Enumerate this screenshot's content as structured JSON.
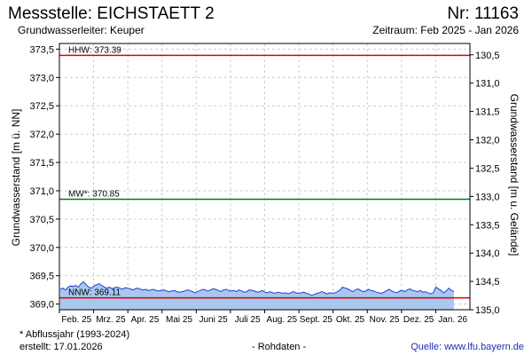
{
  "header": {
    "station_title": "Messstelle: EICHSTAETT 2",
    "station_number": "Nr: 11163",
    "aquifer": "Grundwasserleiter: Keuper",
    "period": "Zeitraum: Feb 2025 - Jan 2026"
  },
  "footer": {
    "footnote": "* Abflussjahr (1993-2024)",
    "created": "erstellt:  17.01.2026",
    "data_state": "- Rohdaten -",
    "source_label": "Quelle:",
    "source_url": "www.lfu.bayern.de"
  },
  "colors": {
    "hhw": "#e00000",
    "mw": "#008000",
    "nnw": "#e00000",
    "area_fill": "#a8c8f0",
    "level_line": "#2040d0",
    "grid": "#cccccc"
  },
  "chart_data": {
    "type": "area",
    "ylabel_left": "Grundwasserstand [m ü. NN]",
    "ylabel_right": "Grundwasserstand [m u. Gelände]",
    "ylim_left": [
      368.9,
      373.6
    ],
    "ylim_right": [
      135.0,
      130.5
    ],
    "grid": true,
    "left_ticks": [
      "373,5",
      "373,0",
      "372,5",
      "372,0",
      "371,5",
      "371,0",
      "370,5",
      "370,0",
      "369,5",
      "369,0"
    ],
    "left_tick_values": [
      373.5,
      373.0,
      372.5,
      372.0,
      371.5,
      371.0,
      370.5,
      370.0,
      369.5,
      369.0
    ],
    "right_ticks": [
      "130,5",
      "131,0",
      "131,5",
      "132,0",
      "132,5",
      "133,0",
      "133,5",
      "134,0",
      "134,5",
      "135,0"
    ],
    "right_tick_values": [
      130.5,
      131.0,
      131.5,
      132.0,
      132.5,
      133.0,
      133.5,
      134.0,
      134.5,
      135.0
    ],
    "ground_level_offset": 503.9,
    "x_ticks": [
      "Feb. 25",
      "Mrz. 25",
      "Apr. 25",
      "Mai 25",
      "Juni 25",
      "Juli 25",
      "Aug. 25",
      "Sept. 25",
      "Okt. 25",
      "Nov. 25",
      "Dez. 25",
      "Jan. 26"
    ],
    "reference_lines": [
      {
        "label": "HHW: 373.39",
        "value": 373.39,
        "color_key": "hhw"
      },
      {
        "label": "MW*: 370.85",
        "value": 370.85,
        "color_key": "mw"
      },
      {
        "label": "NNW: 369.11",
        "value": 369.11,
        "color_key": "nnw"
      }
    ],
    "series": [
      {
        "values": [
          369.26,
          369.28,
          369.25,
          369.3,
          369.32,
          369.31,
          369.33,
          369.3,
          369.36,
          369.39,
          369.34,
          369.3,
          369.28,
          369.32,
          369.34,
          369.36,
          369.33,
          369.3,
          369.28,
          369.3,
          369.27,
          369.29,
          369.3,
          369.28,
          369.26,
          369.29,
          369.28,
          369.27,
          369.25,
          369.27,
          369.28,
          369.26,
          369.25,
          369.26,
          369.24,
          369.25,
          369.26,
          369.24,
          369.23,
          369.24,
          369.25,
          369.23,
          369.22,
          369.23,
          369.24,
          369.22,
          369.21,
          369.22,
          369.23,
          369.25,
          369.24,
          369.22,
          369.2,
          369.22,
          369.24,
          369.26,
          369.25,
          369.23,
          369.25,
          369.27,
          369.26,
          369.24,
          369.22,
          369.25,
          369.26,
          369.24,
          369.23,
          369.24,
          369.22,
          369.25,
          369.23,
          369.21,
          369.22,
          369.25,
          369.24,
          369.23,
          369.21,
          369.22,
          369.24,
          369.21,
          369.2,
          369.22,
          369.2,
          369.19,
          369.21,
          369.2,
          369.19,
          369.2,
          369.18,
          369.2,
          369.22,
          369.2,
          369.19,
          369.2,
          369.21,
          369.19,
          369.18,
          369.15,
          369.17,
          369.19,
          369.2,
          369.22,
          369.2,
          369.18,
          369.2,
          369.19,
          369.2,
          369.22,
          369.25,
          369.3,
          369.28,
          369.27,
          369.24,
          369.22,
          369.25,
          369.27,
          369.24,
          369.22,
          369.23,
          369.26,
          369.24,
          369.23,
          369.21,
          369.2,
          369.19,
          369.21,
          369.24,
          369.26,
          369.23,
          369.21,
          369.2,
          369.23,
          369.24,
          369.22,
          369.25,
          369.27,
          369.24,
          369.23,
          369.22,
          369.24,
          369.21,
          369.22,
          369.2,
          369.18,
          369.2,
          369.3,
          369.27,
          369.24,
          369.2,
          369.23,
          369.28,
          369.24,
          369.22
        ]
      }
    ]
  }
}
